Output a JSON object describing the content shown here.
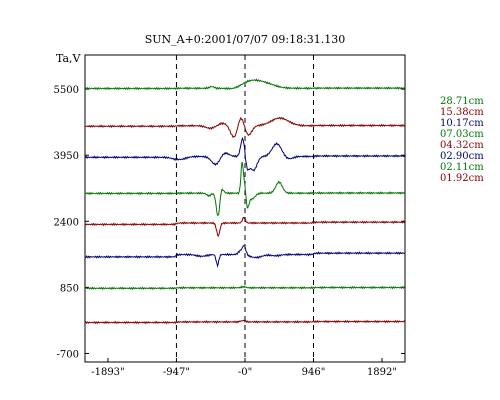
{
  "chart_data": {
    "type": "line",
    "title": "SUN_A+0:2001/07/07 09:18:31.130",
    "ylabel": "Ta,V",
    "xlim": [
      -2210,
      2210
    ],
    "ylim": [
      -900,
      6300
    ],
    "y_ticks": [
      "5500",
      "3950",
      "2400",
      "850",
      "-700"
    ],
    "y_tick_values": [
      5500,
      3950,
      2400,
      850,
      -700
    ],
    "x_ticks": [
      "-1893\"",
      "-947\"",
      "-0\"",
      "946\"",
      "1892\""
    ],
    "x_tick_values": [
      -1893,
      -947,
      0,
      946,
      1892
    ],
    "vlines": [
      -947,
      0,
      946
    ],
    "colors": {
      "green": "#007700",
      "red": "#880000",
      "blue": "#000077"
    },
    "series": [
      {
        "name": "28.71cm",
        "color": "#007700",
        "baseline": 5520,
        "edge": 0.1,
        "features": [
          [
            -460,
            30,
            40
          ],
          [
            -140,
            90,
            -40
          ],
          [
            100,
            150,
            180
          ],
          [
            330,
            120,
            60
          ]
        ]
      },
      {
        "name": "15.38cm",
        "color": "#880000",
        "baseline": 4640,
        "edge": 0.2,
        "features": [
          [
            -480,
            60,
            -60
          ],
          [
            -300,
            60,
            60
          ],
          [
            -150,
            50,
            -280
          ],
          [
            -60,
            40,
            230
          ],
          [
            50,
            45,
            -220
          ],
          [
            480,
            120,
            180
          ]
        ]
      },
      {
        "name": "10.17cm",
        "color": "#000077",
        "baseline": 3920,
        "edge": 0.35,
        "features": [
          [
            -900,
            80,
            -70
          ],
          [
            -400,
            60,
            -200
          ],
          [
            -290,
            60,
            100
          ],
          [
            -30,
            28,
            450
          ],
          [
            30,
            30,
            -280
          ],
          [
            120,
            45,
            -320
          ],
          [
            440,
            65,
            300
          ],
          [
            600,
            60,
            -60
          ]
        ]
      },
      {
        "name": "07.03cm",
        "color": "#007700",
        "baseline": 3060,
        "edge": 0.1,
        "features": [
          [
            -500,
            30,
            -60
          ],
          [
            -370,
            25,
            -650
          ],
          [
            -340,
            30,
            200
          ],
          [
            -40,
            16,
            720
          ],
          [
            0,
            18,
            380
          ],
          [
            25,
            25,
            -400
          ],
          [
            100,
            40,
            -130
          ],
          [
            470,
            45,
            260
          ]
        ]
      },
      {
        "name": "04.32cm",
        "color": "#880000",
        "baseline": 2360,
        "edge": 0.6,
        "features": [
          [
            -370,
            22,
            -300
          ],
          [
            -15,
            20,
            130
          ]
        ]
      },
      {
        "name": "02.90cm",
        "color": "#000077",
        "baseline": 1620,
        "edge": 1.0,
        "features": [
          [
            -600,
            70,
            -40
          ],
          [
            -380,
            18,
            -250
          ],
          [
            -60,
            30,
            90
          ],
          [
            -10,
            22,
            200
          ],
          [
            150,
            80,
            -70
          ],
          [
            420,
            60,
            -30
          ]
        ]
      },
      {
        "name": "02.11cm",
        "color": "#007700",
        "baseline": 840,
        "edge": 0.2,
        "features": [
          [
            -20,
            30,
            25
          ]
        ]
      },
      {
        "name": "01.92cm",
        "color": "#880000",
        "baseline": 40,
        "edge": 0.25,
        "features": [
          [
            -30,
            30,
            30
          ]
        ]
      }
    ]
  }
}
